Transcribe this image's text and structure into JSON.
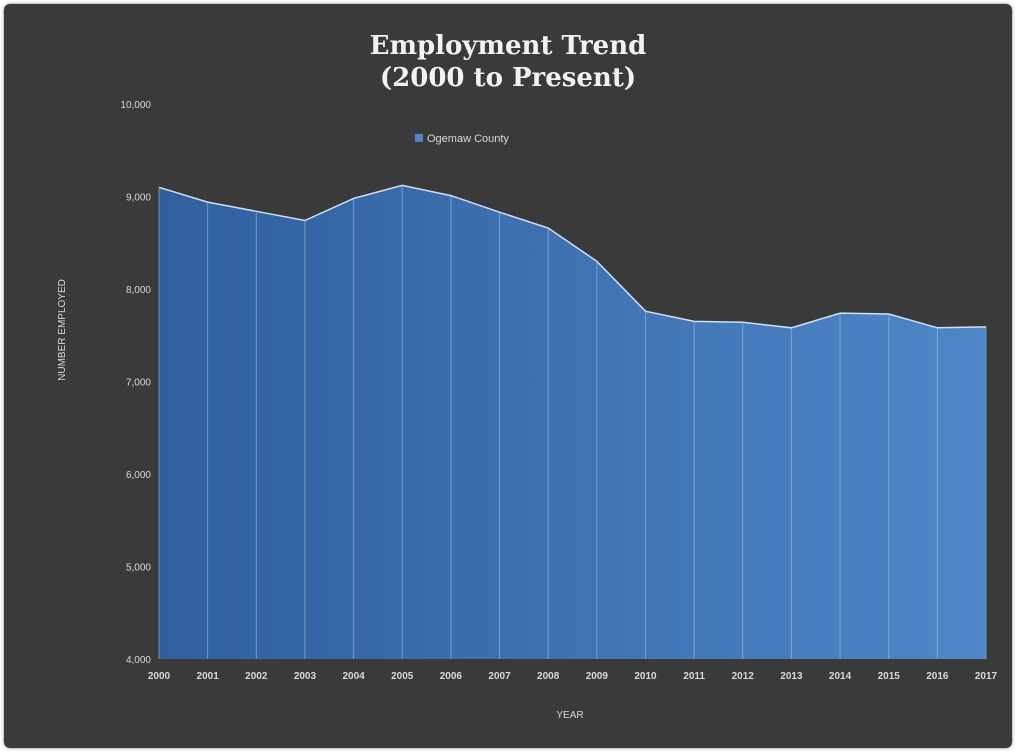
{
  "chart_data": {
    "type": "area",
    "title_line1": "Employment Trend",
    "title_line2": "(2000 to Present)",
    "xlabel": "YEAR",
    "ylabel": "NUMBER EMPLOYED",
    "ylim": [
      4000,
      10000
    ],
    "y_ticks": [
      "4,000",
      "5,000",
      "6,000",
      "7,000",
      "8,000",
      "9,000",
      "10,000"
    ],
    "grid": false,
    "legend_position": "top-center",
    "categories": [
      "2000",
      "2001",
      "2002",
      "2003",
      "2004",
      "2005",
      "2006",
      "2007",
      "2008",
      "2009",
      "2010",
      "2011",
      "2012",
      "2013",
      "2014",
      "2015",
      "2016",
      "2017"
    ],
    "series": [
      {
        "name": "Ogemaw County",
        "color_start": "#2f5f9f",
        "color_end": "#4e86c8",
        "values": [
          9100,
          8940,
          8840,
          8740,
          8980,
          9120,
          9010,
          8830,
          8660,
          8300,
          7760,
          7650,
          7640,
          7580,
          7740,
          7730,
          7580,
          7590
        ]
      }
    ]
  },
  "colors": {
    "background": "#3a3a3a",
    "text": "#f2f2f2",
    "axis_text": "#d9d9d9",
    "divider": "#a9c3e3"
  }
}
